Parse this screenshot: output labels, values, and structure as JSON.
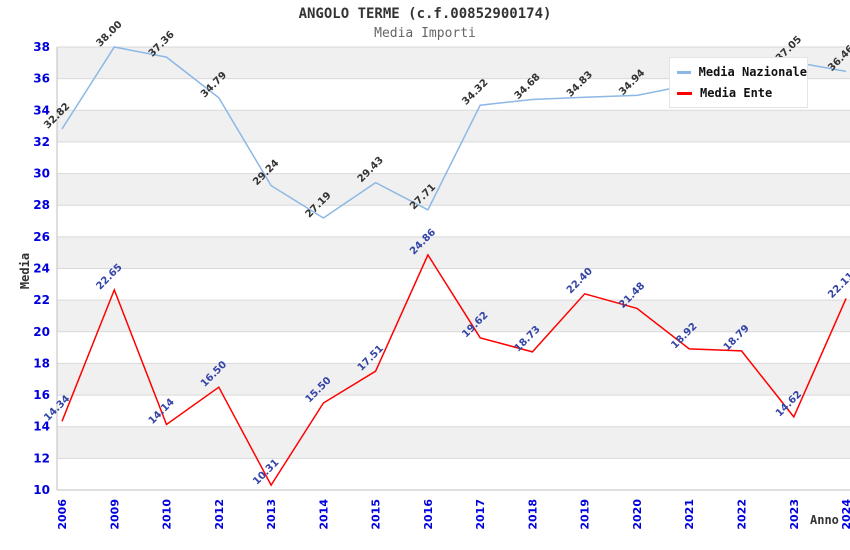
{
  "chart_data": {
    "type": "line",
    "title": "ANGOLO TERME (c.f.00852900174)",
    "subtitle": "Media Importi",
    "xlabel": "Anno",
    "ylabel": "Media",
    "x": [
      "2006",
      "2009",
      "2010",
      "2012",
      "2013",
      "2014",
      "2015",
      "2016",
      "2017",
      "2018",
      "2019",
      "2020",
      "2021",
      "2022",
      "2023",
      "2024"
    ],
    "ylim": [
      10,
      38
    ],
    "y_ticks": [
      10,
      12,
      14,
      16,
      18,
      20,
      22,
      24,
      26,
      28,
      30,
      32,
      34,
      36,
      38
    ],
    "grid": "horizontal gridlines with alternating gray/white bands every 2 units",
    "legend_position": "top-right overlay inside plot",
    "series": [
      {
        "name": "Media Nazionale",
        "color": "#8cb8e6",
        "label_color": "#333333",
        "values": [
          32.82,
          38.0,
          37.36,
          34.79,
          29.24,
          27.19,
          29.43,
          27.71,
          34.32,
          34.68,
          34.83,
          34.94,
          35.6,
          36.4,
          37.05,
          36.46
        ],
        "point_labels": [
          "32.82",
          "38.00",
          "37.36",
          "34.79",
          "29.24",
          "27.19",
          "29.43",
          "27.71",
          "34.32",
          "34.68",
          "34.83",
          "34.94",
          "",
          "",
          "37.05",
          "36.46"
        ]
      },
      {
        "name": "Media Ente",
        "color": "#ff0000",
        "label_color": "#3343a6",
        "values": [
          14.34,
          22.65,
          14.14,
          16.5,
          10.31,
          15.5,
          17.51,
          24.86,
          19.62,
          18.73,
          22.4,
          21.48,
          18.92,
          18.79,
          14.62,
          22.11
        ],
        "point_labels": [
          "14.34",
          "22.65",
          "14.14",
          "16.50",
          "10.31",
          "15.50",
          "17.51",
          "24.86",
          "19.62",
          "18.73",
          "22.40",
          "21.48",
          "18.92",
          "18.79",
          "14.62",
          "22.11"
        ]
      }
    ]
  },
  "colors": {
    "band_gray": "#f0f0f0",
    "band_white": "#ffffff",
    "grid_line": "#d9d9d9",
    "axis_line": "#bfbfbf",
    "tick_label": "#0000dd",
    "title": "#333333",
    "subtitle": "#666666",
    "legend_bg": "#ffffff",
    "legend_border": "#e4e4e4"
  }
}
